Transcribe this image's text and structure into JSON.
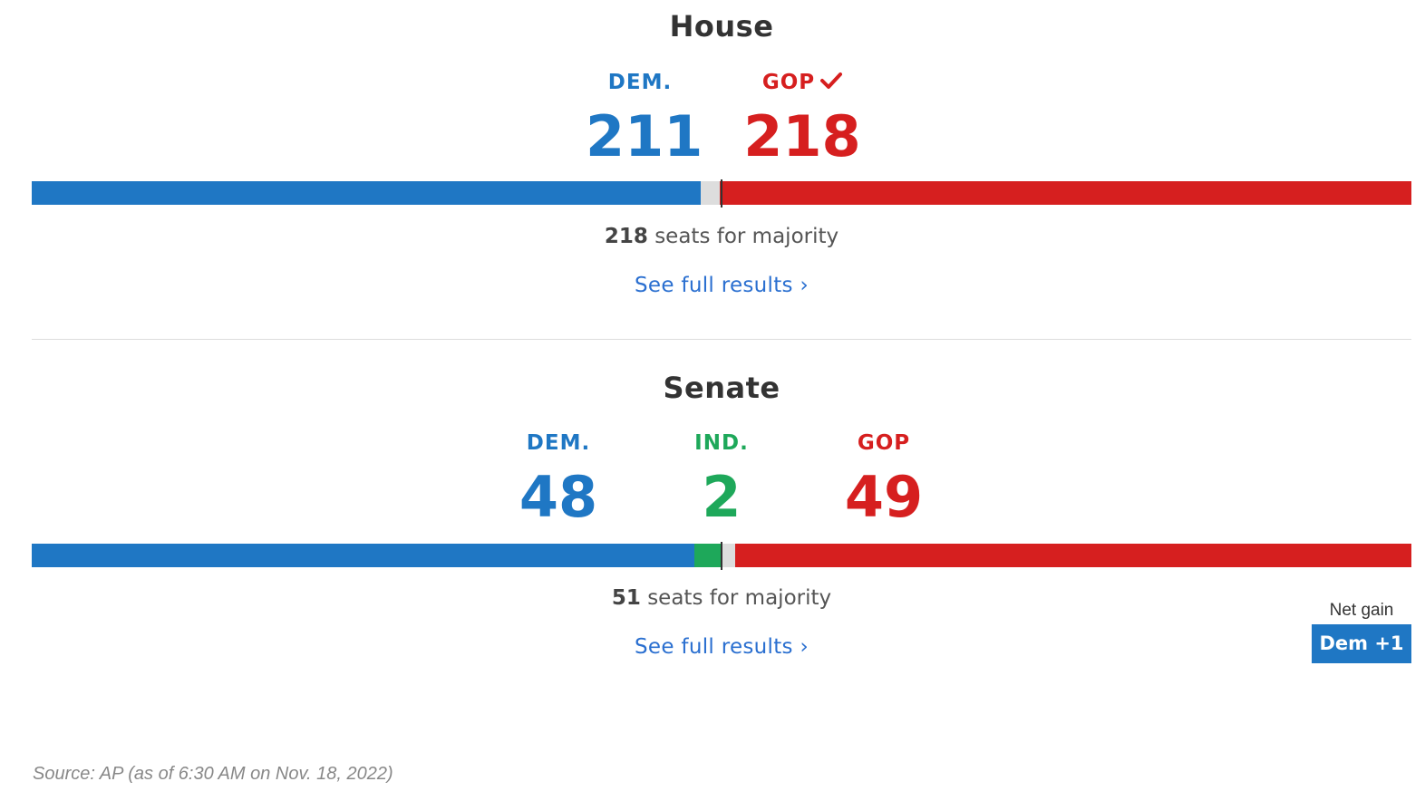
{
  "colors": {
    "dem": "#1f77c4",
    "ind": "#1ea85a",
    "gop": "#d61f1f",
    "undecided": "#dddddd",
    "link": "#2a6fd0"
  },
  "house": {
    "title": "House",
    "dem": {
      "label": "DEM.",
      "count": "211",
      "seats": 211
    },
    "gop": {
      "label": "GOP",
      "count": "218",
      "seats": 218,
      "winner_icon": "check-icon"
    },
    "total_seats": 435,
    "majority_seats": "218",
    "majority_suffix": " seats for majority",
    "link": "See full results ›"
  },
  "senate": {
    "title": "Senate",
    "dem": {
      "label": "DEM.",
      "count": "48",
      "seats": 48
    },
    "ind": {
      "label": "IND.",
      "count": "2",
      "seats": 2
    },
    "gop": {
      "label": "GOP",
      "count": "49",
      "seats": 49
    },
    "total_seats": 100,
    "majority_seats": "51",
    "majority_suffix": " seats for majority",
    "link": "See full results ›",
    "net_gain": {
      "label": "Net gain",
      "badge": "Dem +1"
    }
  },
  "source": "Source: AP (as of 6:30 AM on Nov. 18, 2022)"
}
